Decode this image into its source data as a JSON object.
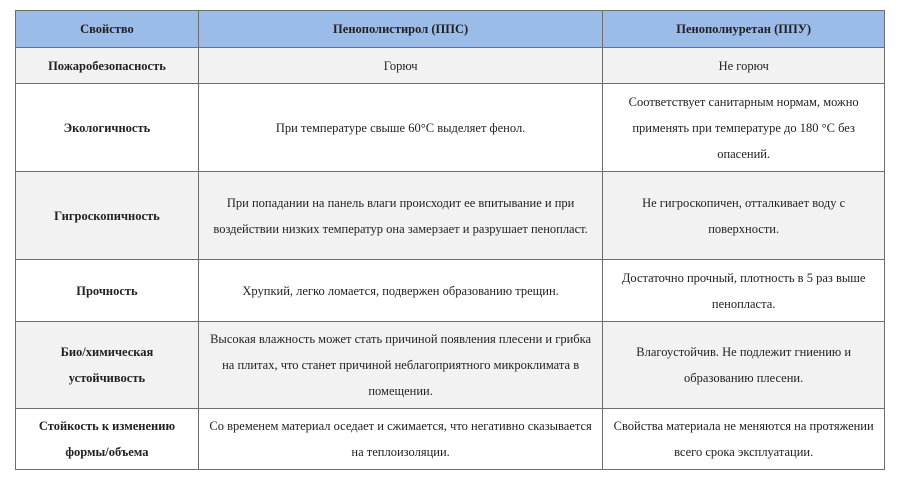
{
  "table": {
    "headers": [
      "Свойство",
      "Пенополистирол (ППС)",
      "Пенополиуретан (ППУ)"
    ],
    "header_color": "#9bbbe8",
    "rows": [
      {
        "property": "Пожаробезопасность",
        "pps": "Горюч",
        "ppu": "Не горюч"
      },
      {
        "property": "Экологичность",
        "pps": "При температуре свыше 60°С выделяет фенол.",
        "ppu": "Соответствует санитарным нормам, можно применять при температуре до 180 °С без опасений."
      },
      {
        "property": "Гигроскопичность",
        "pps": "При попадании на панель влаги происходит ее впитывание и при воздействии низких температур она замерзает и разрушает пенопласт.",
        "ppu": "Не гигроскопичен, отталкивает воду с поверхности."
      },
      {
        "property": "Прочность",
        "pps": "Хрупкий, легко ломается, подвержен образованию трещин.",
        "ppu": "Достаточно прочный, плотность в 5 раз выше пенопласта."
      },
      {
        "property": "Био/химическая устойчивость",
        "pps": "Высокая влажность может стать причиной появления плесени и грибка на плитах, что станет причиной неблагоприятного микроклимата в помещении.",
        "ppu": "Влагоустойчив. Не подлежит гниению и образованию плесени."
      },
      {
        "property": "Стойкость к изменению формы/объема",
        "pps": "Со временем материал оседает и сжимается, что негативно сказывается на теплоизоляции.",
        "ppu": "Свойства материала не меняются на протяжении всего срока эксплуатации."
      }
    ]
  }
}
